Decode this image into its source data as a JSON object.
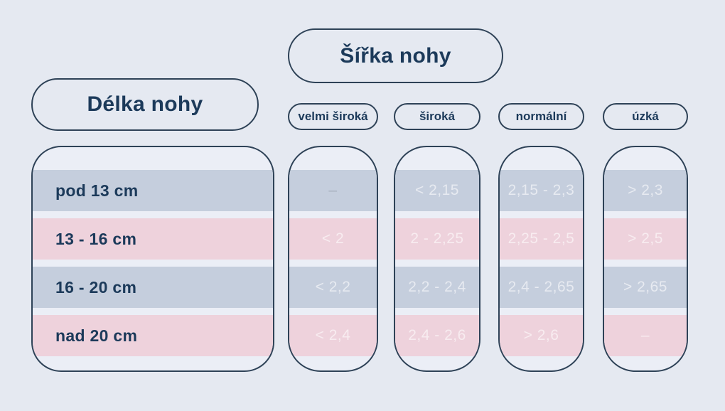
{
  "theme": {
    "background": "#e5e9f1",
    "surface": "#ebeef6",
    "outline": "#2e4257",
    "heading_text": "#1c3a5a",
    "band_blue": "#c5cedd",
    "band_pink": "#eed2dc",
    "value_text": "#ffffff94",
    "muted_value_text": "#a9b1c0"
  },
  "titles": {
    "length": "Délka nohy",
    "width": "Šířka nohy"
  },
  "chart_data": {
    "type": "table",
    "title": "Šířka nohy",
    "row_header": "Délka nohy",
    "units": "cm",
    "columns": [
      "velmi široká",
      "široká",
      "normální",
      "úzká"
    ],
    "rows": [
      "pod 13 cm",
      "13 - 16 cm",
      "16 - 20 cm",
      "nad 20 cm"
    ],
    "cells": [
      [
        "–",
        "< 2,15",
        "2,15 - 2,3",
        "> 2,3"
      ],
      [
        "< 2",
        "2 - 2,25",
        "2,25 - 2,5",
        "> 2,5"
      ],
      [
        "< 2,2",
        "2,2 - 2,4",
        "2,4 - 2,65",
        "> 2,65"
      ],
      [
        "< 2,4",
        "2,4 - 2,6",
        "> 2,6",
        "–"
      ]
    ],
    "row_band_colors": [
      "#c5cedd",
      "#eed2dc",
      "#c5cedd",
      "#eed2dc"
    ]
  }
}
